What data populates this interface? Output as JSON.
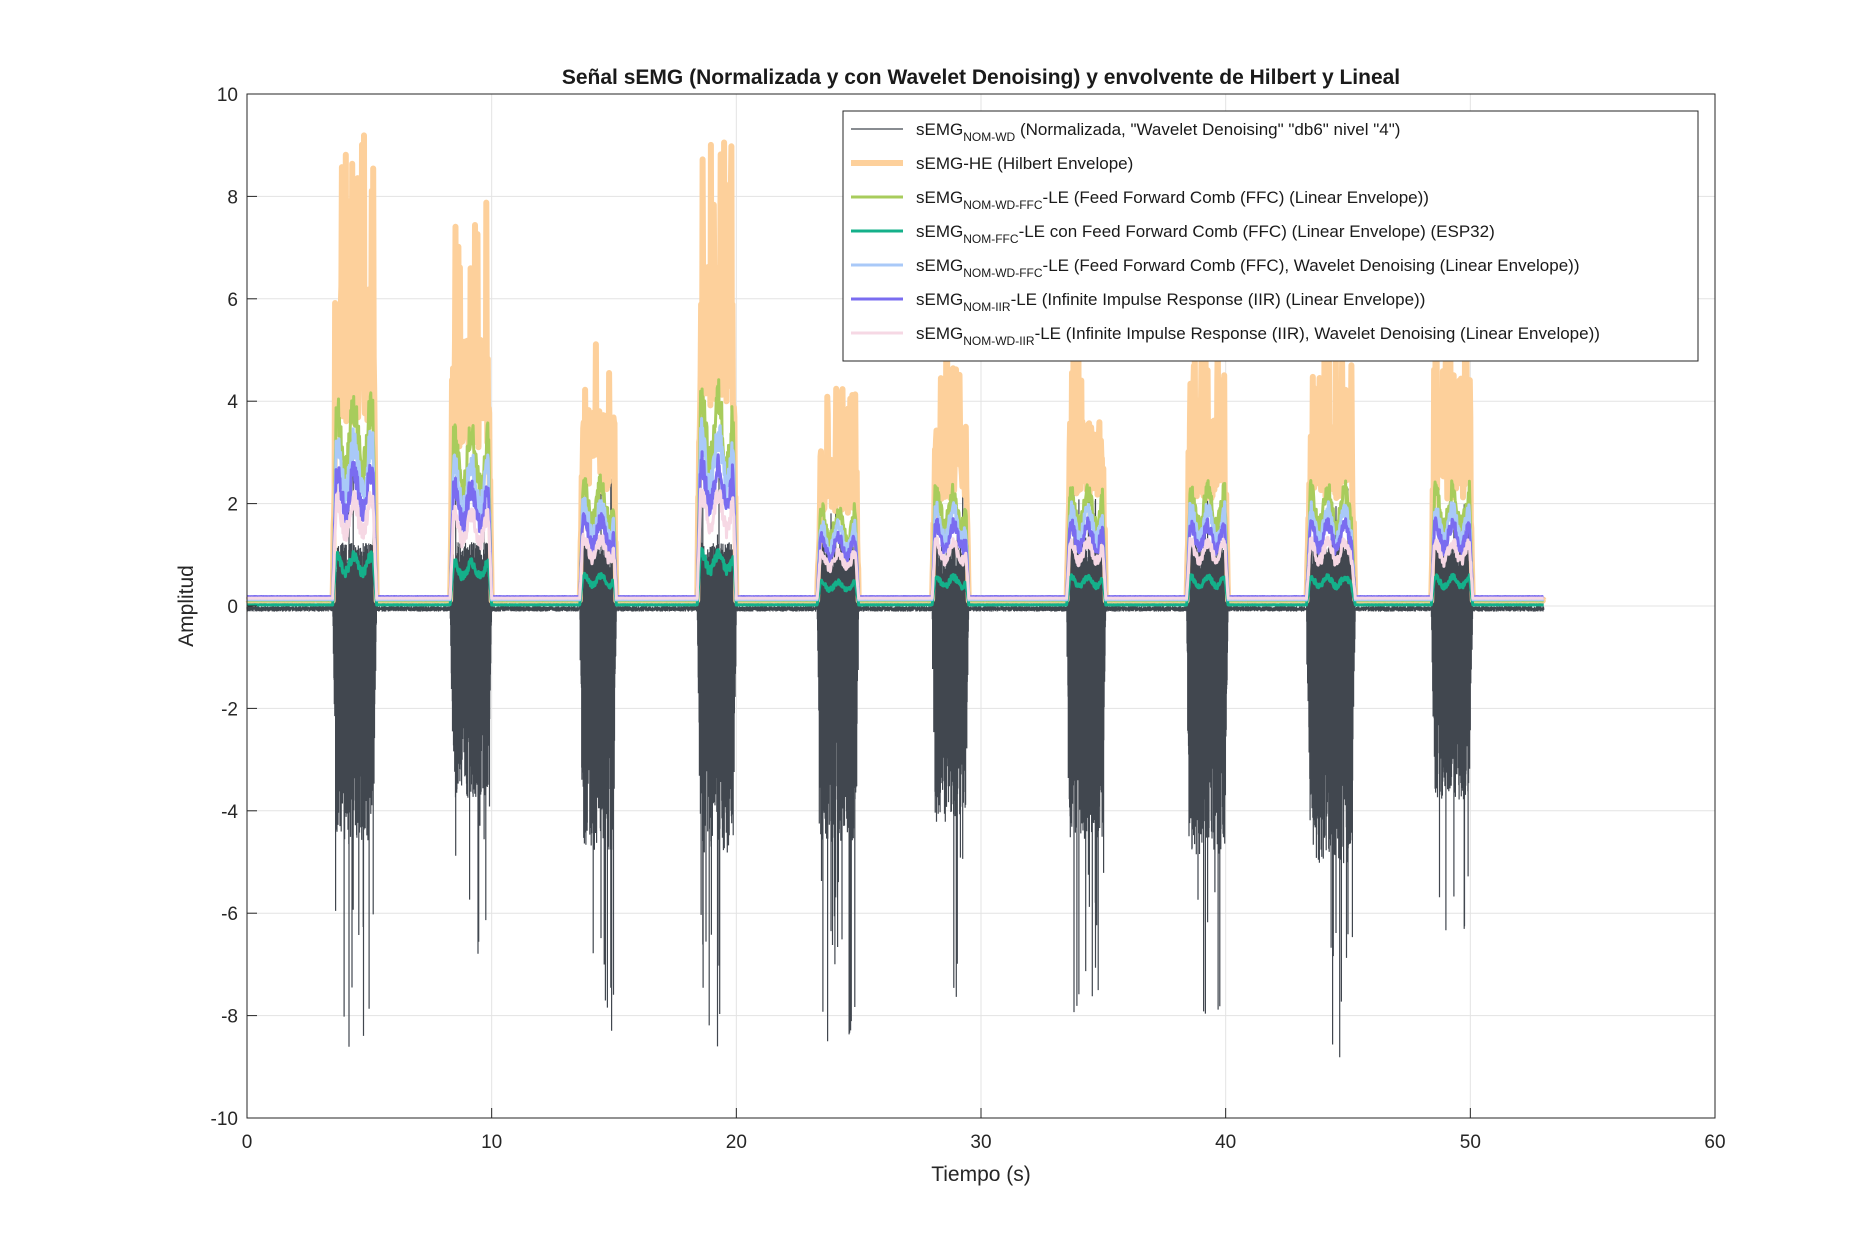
{
  "chart_data": {
    "type": "line",
    "title": "Señal sEMG (Normalizada y con Wavelet Denoising) y envolvente de Hilbert y Lineal",
    "xlabel": "Tiempo (s)",
    "ylabel": "Amplitud",
    "xlim": [
      0,
      60
    ],
    "ylim": [
      -10,
      10
    ],
    "xticks": [
      0,
      10,
      20,
      30,
      40,
      50,
      60
    ],
    "yticks": [
      -10,
      -8,
      -6,
      -4,
      -2,
      0,
      2,
      4,
      6,
      8,
      10
    ],
    "xtick_labels": [
      "0",
      "10",
      "20",
      "30",
      "40",
      "50",
      "60"
    ],
    "ytick_labels": [
      "-10",
      "-8",
      "-6",
      "-4",
      "-2",
      "0",
      "2",
      "4",
      "6",
      "8",
      "10"
    ],
    "grid": true,
    "legend_position": "top-right",
    "signal_duration_s": 53,
    "bursts": [
      {
        "start": 3.5,
        "end": 5.3,
        "max_pos": 9.1,
        "min_neg": -8.7
      },
      {
        "start": 8.3,
        "end": 10.0,
        "max_pos": 7.9,
        "min_neg": -7.0
      },
      {
        "start": 13.6,
        "end": 15.1,
        "max_pos": 5.5,
        "min_neg": -8.9
      },
      {
        "start": 18.4,
        "end": 20.0,
        "max_pos": 9.6,
        "min_neg": -9.0
      },
      {
        "start": 23.3,
        "end": 25.0,
        "max_pos": 4.3,
        "min_neg": -8.6
      },
      {
        "start": 28.0,
        "end": 29.5,
        "max_pos": 5.2,
        "min_neg": -7.9
      },
      {
        "start": 33.5,
        "end": 35.1,
        "max_pos": 5.2,
        "min_neg": -8.5
      },
      {
        "start": 38.4,
        "end": 40.1,
        "max_pos": 5.2,
        "min_neg": -9.1
      },
      {
        "start": 43.3,
        "end": 45.3,
        "max_pos": 5.2,
        "min_neg": -9.4
      },
      {
        "start": 48.4,
        "end": 50.1,
        "max_pos": 5.2,
        "min_neg": -7.1
      }
    ],
    "series": [
      {
        "name_main": "sEMG",
        "name_sub": "NOM-WD",
        "name_rest": " (Normalizada, \"Wavelet Denoising\" \"db6\" nivel \"4\")",
        "color": "#41474f",
        "line_width": 1,
        "kind": "raw",
        "baseline": -0.05
      },
      {
        "name_main": "sEMG-HE (Hilbert Envelope)",
        "name_sub": "",
        "name_rest": "",
        "color": "#fdd09b",
        "line_width": 6,
        "kind": "hilbert",
        "baseline": 0.1,
        "peak_scale": 1.0
      },
      {
        "name_main": "sEMG",
        "name_sub": "NOM-WD-FFC",
        "name_rest": "-LE (Feed Forward Comb (FFC) (Linear Envelope))",
        "color": "#a8cc5c",
        "line_width": 3,
        "kind": "envelope",
        "baseline": 0.1,
        "peak_scale": 0.55
      },
      {
        "name_main": "sEMG",
        "name_sub": "NOM-FFC",
        "name_rest": "-LE con Feed Forward Comb (FFC) (Linear Envelope) (ESP32)",
        "color": "#14b08a",
        "line_width": 3,
        "kind": "envelope",
        "baseline": 0.02,
        "peak_scale": 0.14
      },
      {
        "name_main": "sEMG",
        "name_sub": "NOM-WD-FFC",
        "name_rest": "-LE (Feed Forward Comb (FFC), Wavelet Denoising (Linear Envelope))",
        "color": "#a9c9f8",
        "line_width": 3,
        "kind": "envelope",
        "baseline": 0.12,
        "peak_scale": 0.45
      },
      {
        "name_main": "sEMG",
        "name_sub": "NOM-IIR",
        "name_rest": "-LE (Infinite Impulse Response (IIR) (Linear Envelope))",
        "color": "#7a6cf0",
        "line_width": 3,
        "kind": "envelope",
        "baseline": 0.18,
        "peak_scale": 0.36
      },
      {
        "name_main": "sEMG",
        "name_sub": "NOM-WD-IIR",
        "name_rest": "-LE (Infinite Impulse Response (IIR), Wavelet Denoising (Linear Envelope))",
        "color": "#f6d8e4",
        "line_width": 3,
        "kind": "envelope",
        "baseline": 0.15,
        "peak_scale": 0.28
      }
    ]
  }
}
